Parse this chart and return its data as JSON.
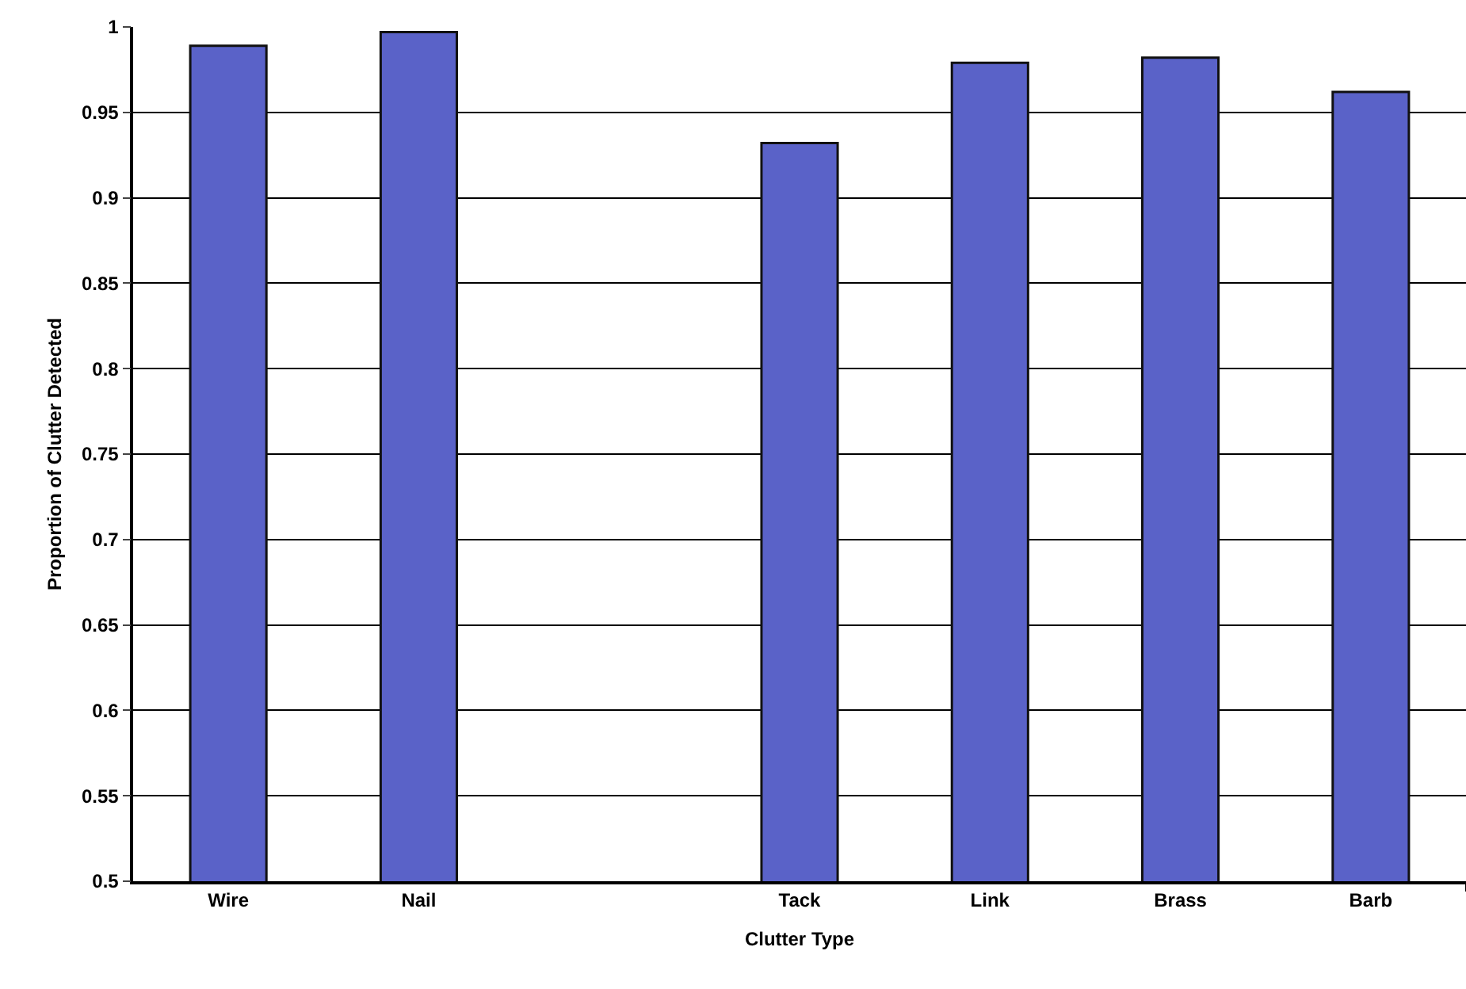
{
  "chart_data": {
    "type": "bar",
    "xlabel": "Clutter Type",
    "ylabel": "Proportion of Clutter Detected",
    "categories": [
      "Wire",
      "Nail",
      null,
      "Tack",
      "Link",
      "Brass",
      "Barb"
    ],
    "values": [
      0.989,
      0.997,
      null,
      0.932,
      0.979,
      0.982,
      0.962
    ],
    "color": "#5a62c8",
    "ylim": [
      0.5,
      1
    ],
    "yticks": [
      0.5,
      0.55,
      0.6,
      0.65,
      0.7,
      0.75,
      0.8,
      0.85,
      0.9,
      0.95,
      1
    ],
    "grid": "y"
  }
}
